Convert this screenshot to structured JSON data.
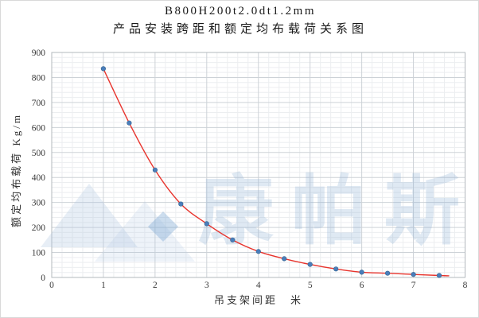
{
  "chart_data": {
    "type": "scatter",
    "title_line1": "B800H200t2.0dt1.2mm",
    "title_line2": "产品安装跨距和额定均布载荷关系图",
    "xlabel": "吊支架间距　米",
    "ylabel": "额定均布载荷 Kg/m",
    "x": [
      1,
      1.5,
      2,
      2.5,
      3,
      3.5,
      4,
      4.5,
      5,
      5.5,
      6,
      6.5,
      7,
      7.5
    ],
    "y": [
      835,
      618,
      430,
      294,
      215,
      150,
      104,
      75,
      52,
      34,
      21,
      17,
      12,
      8
    ],
    "series_name": "额定均布载荷",
    "trendline": "smooth-curve-through-points",
    "xlim": [
      0,
      8
    ],
    "ylim": [
      0,
      900
    ],
    "xticks": [
      0,
      1,
      2,
      3,
      4,
      5,
      6,
      7,
      8
    ],
    "yticks": [
      0,
      100,
      200,
      300,
      400,
      500,
      600,
      700,
      800,
      900
    ],
    "x_minor_step": 0.2,
    "y_minor_step": 20,
    "grid": "major+minor",
    "legend_position": "none",
    "marker_color": "#4a7ebb",
    "marker_edge_color": "#36648f",
    "line_color": "#e8342d",
    "major_grid_color": "#cdd2d7",
    "minor_grid_color": "#eceef0",
    "axis_line_color": "#b3b8bd",
    "tick_label_color": "#3a3a3a"
  },
  "watermark": {
    "text": "康帕斯",
    "logo": "twin-mountain-peaks-with-diamond",
    "color": "#8cafd4"
  }
}
